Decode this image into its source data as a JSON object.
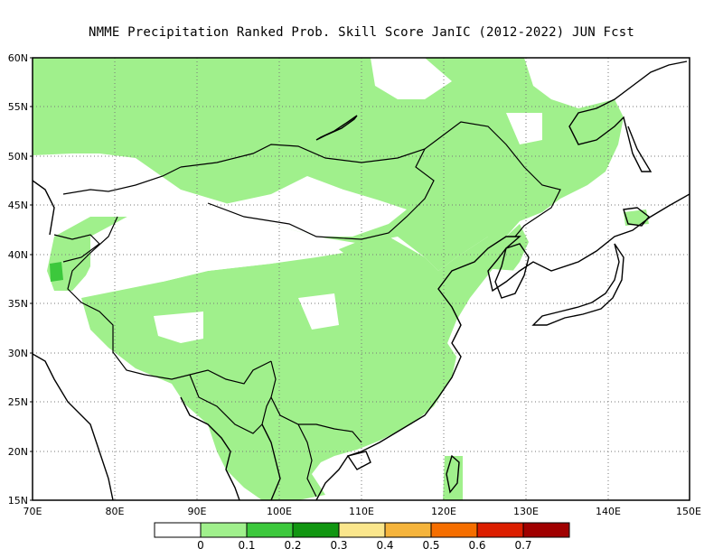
{
  "title": "NMME  Precipitation Ranked Prob. Skill Score JanIC (2012-2022) JUN Fcst",
  "map": {
    "lon_range": [
      70,
      150
    ],
    "lat_range": [
      15,
      60
    ],
    "lat_ticks": [
      "15N",
      "20N",
      "25N",
      "30N",
      "35N",
      "40N",
      "45N",
      "50N",
      "55N",
      "60N"
    ],
    "lon_ticks": [
      "70E",
      "80E",
      "90E",
      "100E",
      "110E",
      "120E",
      "130E",
      "140E",
      "150E"
    ],
    "grid": "dotted"
  },
  "colorbar": {
    "colors": [
      "#ffffff",
      "#a0f08c",
      "#3cc83c",
      "#119611",
      "#fae68c",
      "#f5b43c",
      "#f56e00",
      "#dc1e00",
      "#a00000"
    ],
    "labels": [
      "0",
      "0.1",
      "0.2",
      "0.3",
      "0.4",
      "0.5",
      "0.6",
      "0.7"
    ]
  },
  "colors": {
    "skill_low": "#a0f08c",
    "skill_mid": "#3cc83c",
    "ocean": "#ffffff",
    "coast": "#000000"
  }
}
